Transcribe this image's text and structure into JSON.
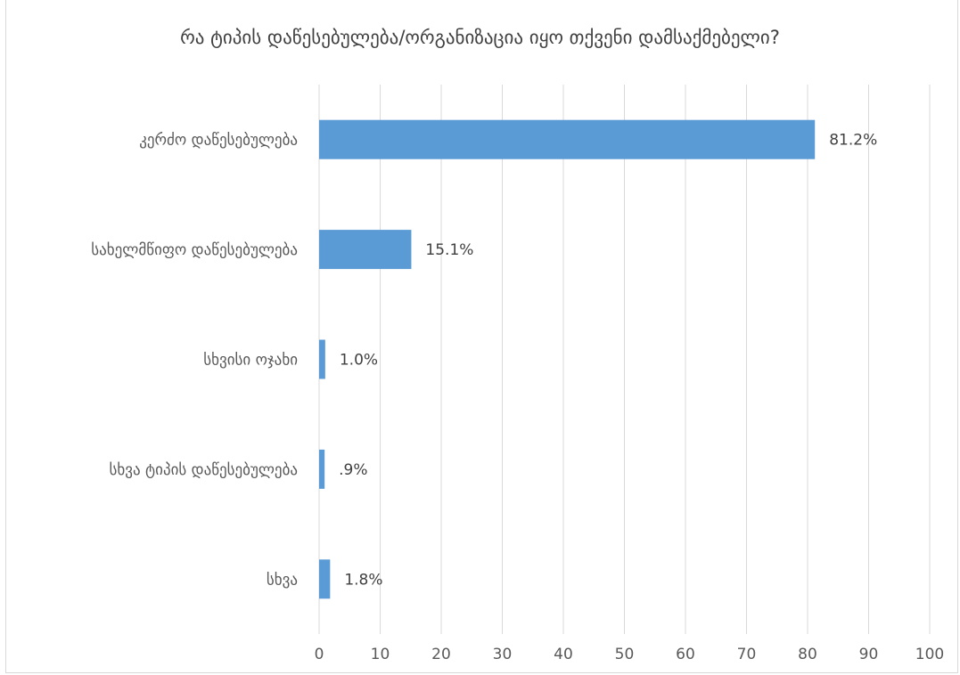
{
  "chart_data": {
    "type": "bar",
    "orientation": "horizontal",
    "title": "რა ტიპის დაწესებულება/ორგანიზაცია იყო თქვენი დამსაქმებელი?",
    "categories": [
      "კერძო დაწესებულება",
      "სახელმწიფო დაწესებულება",
      "სხვისი ოჯახი",
      "სხვა ტიპის დაწესებულება",
      "სხვა"
    ],
    "values": [
      81.2,
      15.1,
      1.0,
      0.9,
      1.8
    ],
    "data_labels": [
      "81.2%",
      "15.1%",
      "1.0%",
      ".9%",
      "1.8%"
    ],
    "xlim": [
      0,
      100
    ],
    "x_ticks": [
      "0",
      "10",
      "20",
      "30",
      "40",
      "50",
      "60",
      "70",
      "80",
      "90",
      "100"
    ],
    "grid": true,
    "legend": "none",
    "bar_color": "#5b9bd5",
    "grid_color": "#d9d9d9"
  }
}
